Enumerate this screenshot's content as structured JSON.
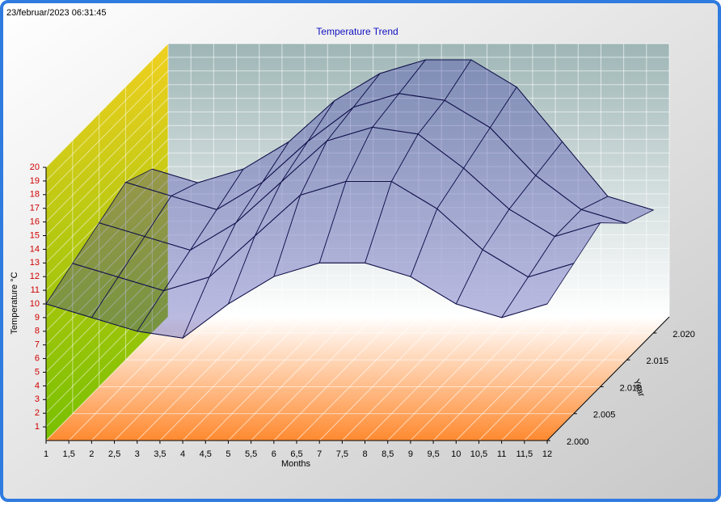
{
  "timestamp": "23/februar/2023 06:31:45",
  "chart_data": {
    "type": "surface",
    "title": "Temperature Trend",
    "x_label": "Months",
    "y_label": "Temperature °C",
    "z_label": "Year",
    "x": [
      1,
      2,
      3,
      4,
      5,
      6,
      7,
      8,
      9,
      10,
      11,
      12
    ],
    "z": [
      2000,
      2005,
      2010,
      2015,
      2020
    ],
    "values": [
      [
        10,
        9,
        8,
        7.5,
        10,
        12,
        13,
        13,
        12,
        10,
        9,
        10
      ],
      [
        11,
        10,
        9,
        10,
        13,
        16,
        17,
        17,
        15,
        12,
        10,
        11
      ],
      [
        12,
        11,
        10,
        12,
        15,
        18,
        19,
        18.5,
        16,
        13,
        11,
        12
      ],
      [
        13,
        12,
        11,
        13,
        16,
        18.5,
        19.5,
        19,
        17,
        13.5,
        11,
        10
      ],
      [
        12,
        11,
        12,
        14,
        17,
        19,
        20,
        20,
        18,
        14,
        10,
        9
      ]
    ],
    "color": "#3a3aa8",
    "xlim": [
      1,
      12
    ],
    "xticks": [
      1,
      {
        "value": 1.5,
        "label": "1,5"
      },
      2,
      {
        "value": 2.5,
        "label": "2,5"
      },
      3,
      {
        "value": 3.5,
        "label": "3,5"
      },
      4,
      {
        "value": 4.5,
        "label": "4,5"
      },
      5,
      {
        "value": 5.5,
        "label": "5,5"
      },
      6,
      {
        "value": 6.5,
        "label": "6,5"
      },
      7,
      {
        "value": 7.5,
        "label": "7,5"
      },
      8,
      {
        "value": 8.5,
        "label": "8,5"
      },
      9,
      {
        "value": 9.5,
        "label": "9,5"
      },
      10,
      {
        "value": 10.5,
        "label": "10,5"
      },
      11,
      {
        "value": 11.5,
        "label": "11,5"
      },
      12
    ],
    "ylim": [
      0,
      20
    ],
    "yticks": [
      1,
      2,
      3,
      4,
      5,
      6,
      7,
      8,
      9,
      10,
      11,
      12,
      13,
      14,
      15,
      16,
      17,
      18,
      19,
      20
    ],
    "zlim": [
      2000,
      2023
    ],
    "zticks": [
      {
        "value": 2000,
        "label": "2.000"
      },
      {
        "value": 2005,
        "label": "2.005"
      },
      {
        "value": 2010,
        "label": "2.010"
      },
      {
        "value": 2015,
        "label": "2.015"
      },
      {
        "value": 2020,
        "label": "2.020"
      }
    ],
    "grid": true
  }
}
